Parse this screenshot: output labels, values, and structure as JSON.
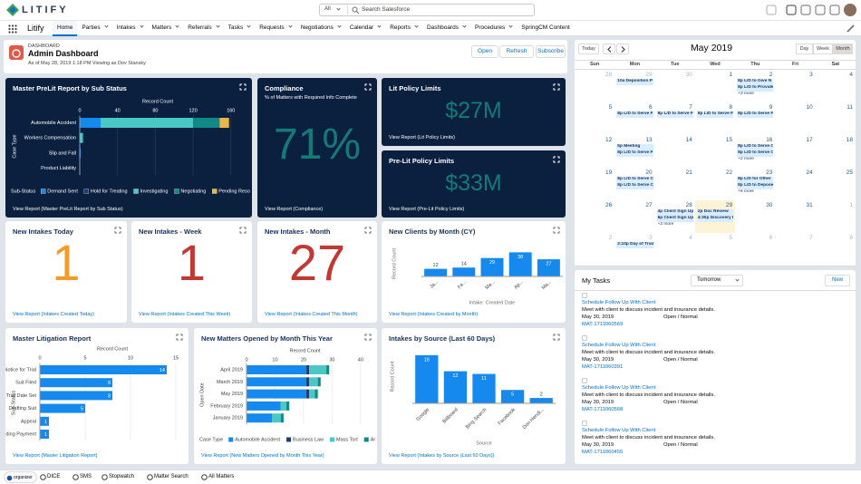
{
  "header": {
    "logo": "LITIFY",
    "search_scope": "All",
    "search_placeholder": "Search Salesforce"
  },
  "nav": {
    "app": "Litify",
    "tabs": [
      "Home",
      "Parties",
      "Intakes",
      "Matters",
      "Referrals",
      "Tasks",
      "Requests",
      "Negotiations",
      "Calendar",
      "Reports",
      "Dashboards",
      "Procedures",
      "SpringCM Content"
    ]
  },
  "dashboard": {
    "label": "DASHBOARD",
    "title": "Admin Dashboard",
    "subtitle": "As of May 28, 2019 1:18 PM Viewing as Dov Stansky",
    "buttons": [
      "Open",
      "Refresh",
      "Subscribe"
    ]
  },
  "metrics": [
    {
      "title": "Compliance",
      "subtitle": "% of Matters with Required Info Complete",
      "value": "71%",
      "color": "#137a78",
      "link": "View Report (Compliance)"
    },
    {
      "title": "Lit Policy Limits",
      "value": "$27M",
      "color": "#137a78",
      "link": "View Report (Lit Policy Limits)"
    },
    {
      "title": "Pre-Lit Policy Limits",
      "value": "$33M",
      "color": "#137a78",
      "link": "View Report (Pre-Lit Policy Limits)"
    },
    {
      "title": "New Intakes Today",
      "value": "1",
      "color": "#f59b26",
      "link": "View Report (Intakes Created Today)"
    },
    {
      "title": "New Intakes - Week",
      "value": "1",
      "color": "#c23934",
      "link": "View Report (Intakes Created This Week)"
    },
    {
      "title": "New Intakes - Month",
      "value": "27",
      "color": "#c23934",
      "link": "View Report (Intakes Created This Month)"
    }
  ],
  "chart_data": [
    {
      "type": "bar",
      "orientation": "horizontal",
      "stacked": true,
      "theme": "dark",
      "title": "Master PreLit Report by Sub Status",
      "x_label": "Record Count",
      "y_label": "Case Type",
      "legend_title": "Sub-Status",
      "categories": [
        "Automobile Accident",
        "Workers Compensation",
        "Slip and Fall",
        "Product Liability"
      ],
      "series": [
        {
          "name": "Demand Sent",
          "color": "#1589ee",
          "values": [
            22,
            0,
            1,
            0
          ]
        },
        {
          "name": "Hold for Treating",
          "color": "#1d3c6e",
          "values": [
            0,
            0,
            0,
            0
          ]
        },
        {
          "name": "Investigating",
          "color": "#4bc7c5",
          "values": [
            98,
            3,
            0,
            0
          ]
        },
        {
          "name": "Negotiating",
          "color": "#0f8a86",
          "values": [
            28,
            1,
            0,
            0
          ]
        },
        {
          "name": "Pending Reso",
          "color": "#e6b84a",
          "values": [
            10,
            0,
            0,
            0
          ]
        }
      ],
      "xlim": [
        0,
        165
      ],
      "xticks": [
        0,
        40,
        80,
        120,
        160
      ],
      "link": "View Report (Master PreLit Report by Sub Status)"
    },
    {
      "type": "bar",
      "title": "New Clients by Month (CY)",
      "categories": [
        "Ja...",
        "Fe...",
        "Ma...",
        "Ap...",
        "Ma..."
      ],
      "values": [
        12,
        14,
        29,
        38,
        27
      ],
      "color": "#1589ee",
      "ylim": [
        0,
        40
      ],
      "x_label": "Intake: Created Date",
      "y_label": "Record Count",
      "data_labels": true,
      "link": "View Report (Intakes Created by Month)"
    },
    {
      "type": "bar",
      "orientation": "horizontal",
      "title": "Master Litigation Report",
      "categories": [
        "Notice for Trial",
        "Suit Filed",
        "Trial Date Set",
        "Drafting Suit",
        "Appeal",
        "Pending Payment"
      ],
      "values": [
        14,
        8,
        8,
        5,
        1,
        1
      ],
      "color": "#1589ee",
      "xlim": [
        0,
        16
      ],
      "xticks": [
        0,
        5,
        10,
        15
      ],
      "x_label": "Record Count",
      "y_label": "Sub-Status",
      "data_labels": true,
      "link": "View Report (Master Litigation Report)"
    },
    {
      "type": "bar",
      "orientation": "horizontal",
      "stacked": true,
      "title": "New Matters Opened by Month This Year",
      "x_label": "Record Count",
      "y_label": "Open Date",
      "legend_title": "Case Type",
      "categories": [
        "April 2019",
        "March 2019",
        "May 2019",
        "February 2019",
        "January 2019"
      ],
      "series": [
        {
          "name": "Automobile Accident",
          "color": "#1589ee",
          "values": [
            21,
            21,
            21,
            12,
            9
          ]
        },
        {
          "name": "Business Law",
          "color": "#1d3c6e",
          "values": [
            1,
            1,
            1,
            0,
            0
          ]
        },
        {
          "name": "Mass Tort",
          "color": "#4bc7c5",
          "values": [
            6,
            3,
            2,
            2,
            3
          ]
        },
        {
          "name": "Ar",
          "color": "#0f8a86",
          "values": [
            1,
            1,
            1,
            1,
            1
          ]
        }
      ],
      "xlim": [
        0,
        41
      ],
      "xticks": [
        0,
        10,
        20,
        30,
        40
      ],
      "link": "View Report (New Matters Opened by Month This Year)"
    },
    {
      "type": "bar",
      "title": "Intakes by Source (Last 60 Days)",
      "categories": [
        "Google",
        "Billboard",
        "Bing Search",
        "Facebook",
        "Don Hendi..."
      ],
      "values": [
        18,
        12,
        11,
        5,
        2
      ],
      "color": "#1589ee",
      "ylim": [
        0,
        20
      ],
      "x_label": "Source",
      "y_label": "Record Count",
      "data_labels": true,
      "link": "View Report (Intakes by Source (Last 60 Days))"
    }
  ],
  "calendar": {
    "today_button": "Today",
    "title": "May 2019",
    "views": [
      "Day",
      "Week",
      "Month"
    ],
    "weekdays": [
      "Sun",
      "Mon",
      "Tue",
      "Wed",
      "Thu",
      "Fri",
      "Sat"
    ],
    "weeks": [
      [
        {
          "day": 28,
          "other_month": true
        },
        {
          "day": 29,
          "other_month": true,
          "events": [
            "10a Deposition P"
          ]
        },
        {
          "day": 30,
          "other_month": true
        },
        {
          "day": 1
        },
        {
          "day": 2,
          "events": [
            "8p L/D to Give N",
            "8p L/D to Provide",
            "+3 more"
          ]
        },
        {
          "day": 3
        },
        {
          "day": 4
        }
      ],
      [
        {
          "day": 5
        },
        {
          "day": 6,
          "events": [
            "8p L/D to Serve F"
          ]
        },
        {
          "day": 7,
          "events": [
            "8p L/D to Serve F"
          ]
        },
        {
          "day": 8,
          "events": [
            "8p L/D to Serve F"
          ]
        },
        {
          "day": 9,
          "events": [
            "8p L/D to Serve F"
          ]
        },
        {
          "day": 10
        },
        {
          "day": 11
        }
      ],
      [
        {
          "day": 12
        },
        {
          "day": 13,
          "events": [
            "5p Meeting",
            "8p L/D to Serve F"
          ]
        },
        {
          "day": 14
        },
        {
          "day": 15
        },
        {
          "day": 16,
          "events": [
            "8p L/D to Serve C",
            "8p L/D to Serve C",
            "+2 more"
          ]
        },
        {
          "day": 17
        },
        {
          "day": 18
        }
      ],
      [
        {
          "day": 19
        },
        {
          "day": 20,
          "events": [
            "8p L/D to Serve C",
            "8p L/D to Serve C"
          ]
        },
        {
          "day": 21
        },
        {
          "day": 22
        },
        {
          "day": 23,
          "events": [
            "8p L/D for Other",
            "8p L/D to Depose",
            "+6 more"
          ]
        },
        {
          "day": 24
        },
        {
          "day": 25
        }
      ],
      [
        {
          "day": 26
        },
        {
          "day": 27
        },
        {
          "day": 28,
          "events": [
            "4p Client Sign Up",
            "6p Client Sign Up",
            "+2 more"
          ]
        },
        {
          "day": 29,
          "highlight": true,
          "events": [
            "2p Doc Review",
            "4:30p Discovery I"
          ]
        },
        {
          "day": 30
        },
        {
          "day": 31
        },
        {
          "day": 1,
          "other_month": true
        }
      ],
      [
        {
          "day": 2,
          "other_month": true
        },
        {
          "day": 3,
          "other_month": true,
          "events": [
            "2:10p Day of Trial"
          ]
        },
        {
          "day": 4,
          "other_month": true
        },
        {
          "day": 5,
          "other_month": true
        },
        {
          "day": 6,
          "other_month": true
        },
        {
          "day": 7,
          "other_month": true
        },
        {
          "day": 8,
          "other_month": true
        }
      ]
    ]
  },
  "tasks": {
    "title": "My Tasks",
    "filter": "Tomorrow",
    "new_button": "New",
    "items": [
      {
        "subject": "Schedule Follow Up With Client",
        "description": "Meet with client to discuss incident and insurance details.",
        "date": "May 30, 2019",
        "status": "Open / Normal",
        "matter": "MAT-1711060569"
      },
      {
        "subject": "Schedule Follow Up With Client",
        "description": "Meet with client to discuss incident and insurance details.",
        "date": "May 30, 2019",
        "status": "Open / Normal",
        "matter": "MAT-1711060391"
      },
      {
        "subject": "Schedule Follow Up With Client",
        "description": "Meet with client to discuss incident and insurance details.",
        "date": "May 30, 2019",
        "status": "Open / Normal",
        "matter": "MAT-1711060568"
      },
      {
        "subject": "Schedule Follow Up With Client",
        "description": "Meet with client to discuss incident and insurance details.",
        "date": "May 30, 2019",
        "status": "Open / Normal",
        "matter": "MAT-1711060455"
      }
    ]
  },
  "utility_bar": [
    "organizer",
    "DICE",
    "SMS",
    "Stopwatch",
    "Matter Search",
    "All Matters"
  ]
}
